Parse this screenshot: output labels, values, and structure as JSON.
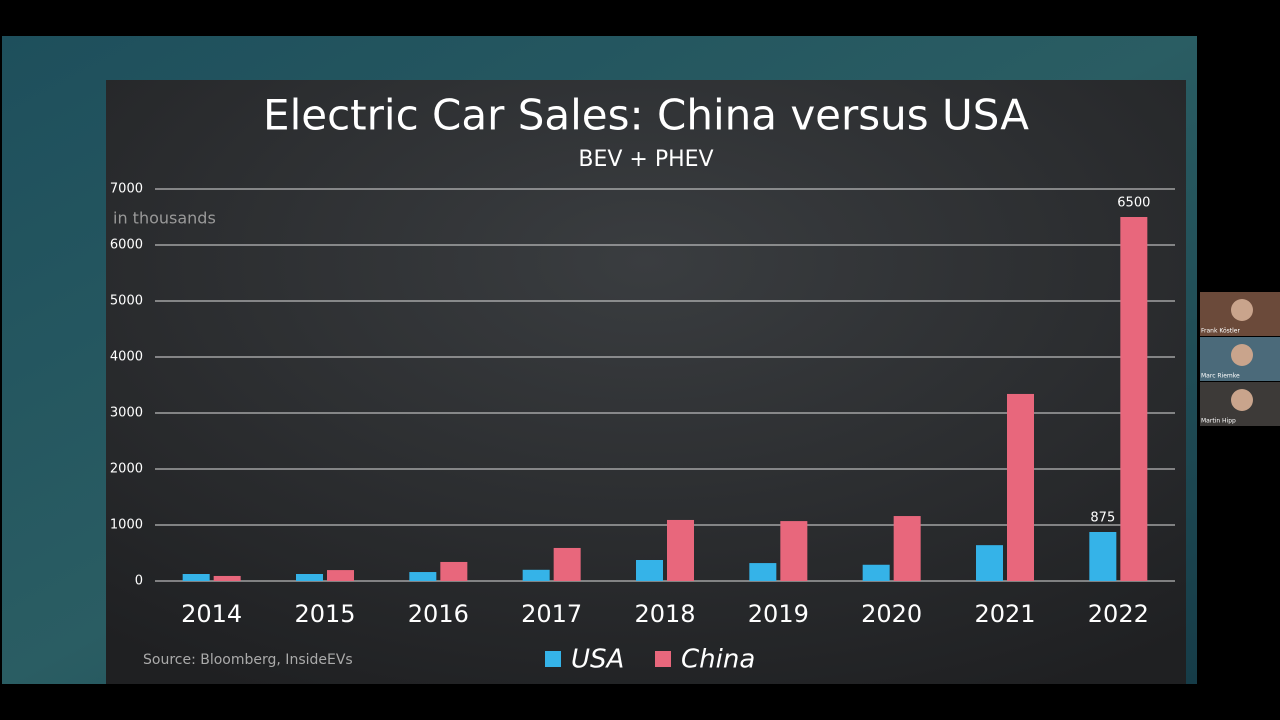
{
  "chart_data": {
    "type": "bar",
    "title": "Electric Car Sales: China versus USA",
    "subtitle": "BEV + PHEV",
    "y_label": "in thousands",
    "source": "Source: Bloomberg, InsideEVs",
    "categories": [
      "2014",
      "2015",
      "2016",
      "2017",
      "2018",
      "2019",
      "2020",
      "2021",
      "2022"
    ],
    "series": [
      {
        "name": "USA",
        "color": "#35b3e8",
        "values": [
          125,
          125,
          160,
          200,
          375,
          320,
          290,
          640,
          875
        ],
        "value_labels": [
          null,
          null,
          null,
          null,
          null,
          null,
          null,
          null,
          "875"
        ]
      },
      {
        "name": "China",
        "color": "#e8677c",
        "values": [
          90,
          195,
          340,
          590,
          1090,
          1070,
          1160,
          3340,
          6500
        ],
        "value_labels": [
          null,
          null,
          null,
          null,
          null,
          null,
          null,
          null,
          "6500"
        ]
      }
    ],
    "ylim": [
      0,
      7000
    ],
    "yticks": [
      0,
      1000,
      2000,
      3000,
      4000,
      5000,
      6000,
      7000
    ],
    "grid": true
  },
  "participants": [
    "Frank Köstler",
    "Marc Riemke",
    "Martin Hipp"
  ]
}
